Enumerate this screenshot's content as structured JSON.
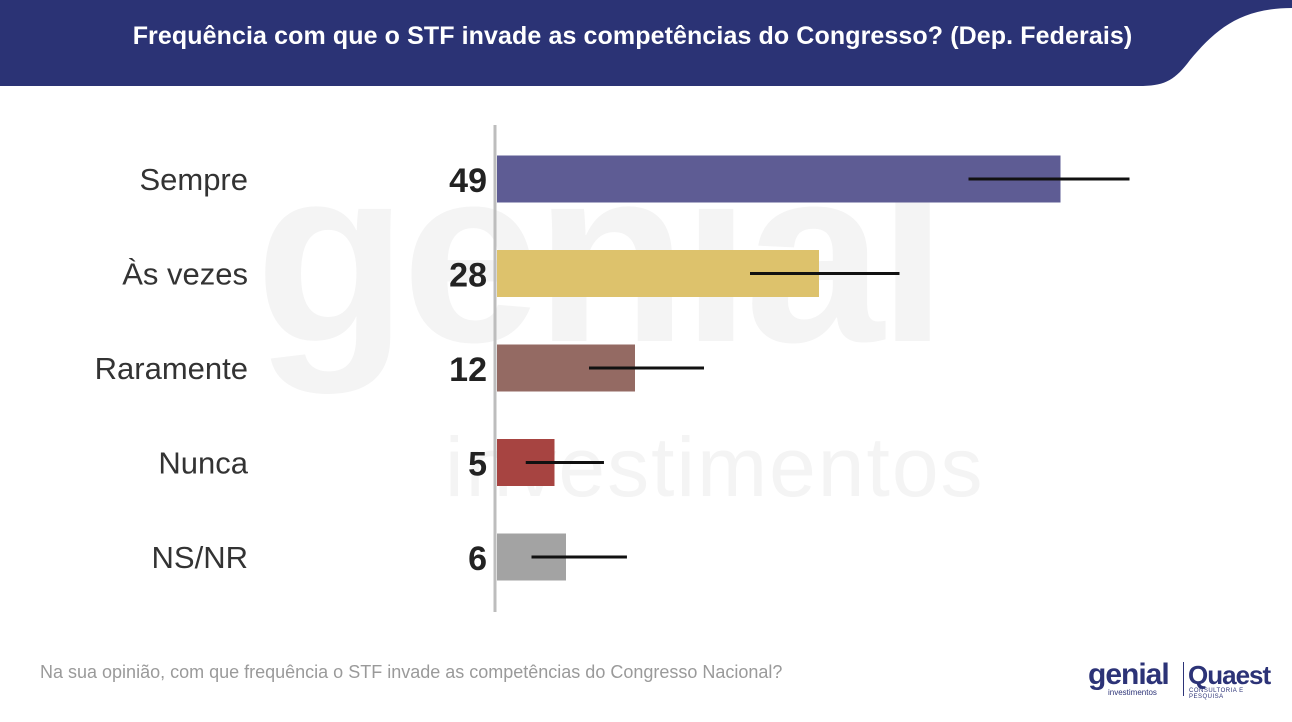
{
  "header": {
    "title": "Frequência com que o STF invade as competências do Congresso? (Dep. Federais)",
    "band_color": "#2b3375"
  },
  "watermark": {
    "big_text": "genial",
    "small_text": "investimentos"
  },
  "footer": {
    "question": "Na sua opinião, com que frequência o STF invade as competências do Congresso Nacional?",
    "logo_genial": "genial",
    "logo_genial_sub": "investimentos",
    "logo_quaest": "Quaest",
    "logo_quaest_sub": "CONSULTORIA E PESQUISA"
  },
  "chart_data": {
    "type": "bar",
    "orientation": "horizontal",
    "title": "Frequência com que o STF invade as competências do Congresso? (Dep. Federais)",
    "categories": [
      "Sempre",
      "Às vezes",
      "Raramente",
      "Nunca",
      "NS/NR"
    ],
    "values": [
      49,
      28,
      12,
      5,
      6
    ],
    "error_bars": [
      [
        41,
        55
      ],
      [
        22,
        35
      ],
      [
        8,
        18
      ],
      [
        2.5,
        9.3
      ],
      [
        3,
        11.3
      ]
    ],
    "colors": [
      "#5e5c94",
      "#ddc26c",
      "#946a63",
      "#a74441",
      "#a3a3a3"
    ],
    "xlim": [
      0,
      60
    ],
    "grid": false,
    "legend": "none"
  }
}
